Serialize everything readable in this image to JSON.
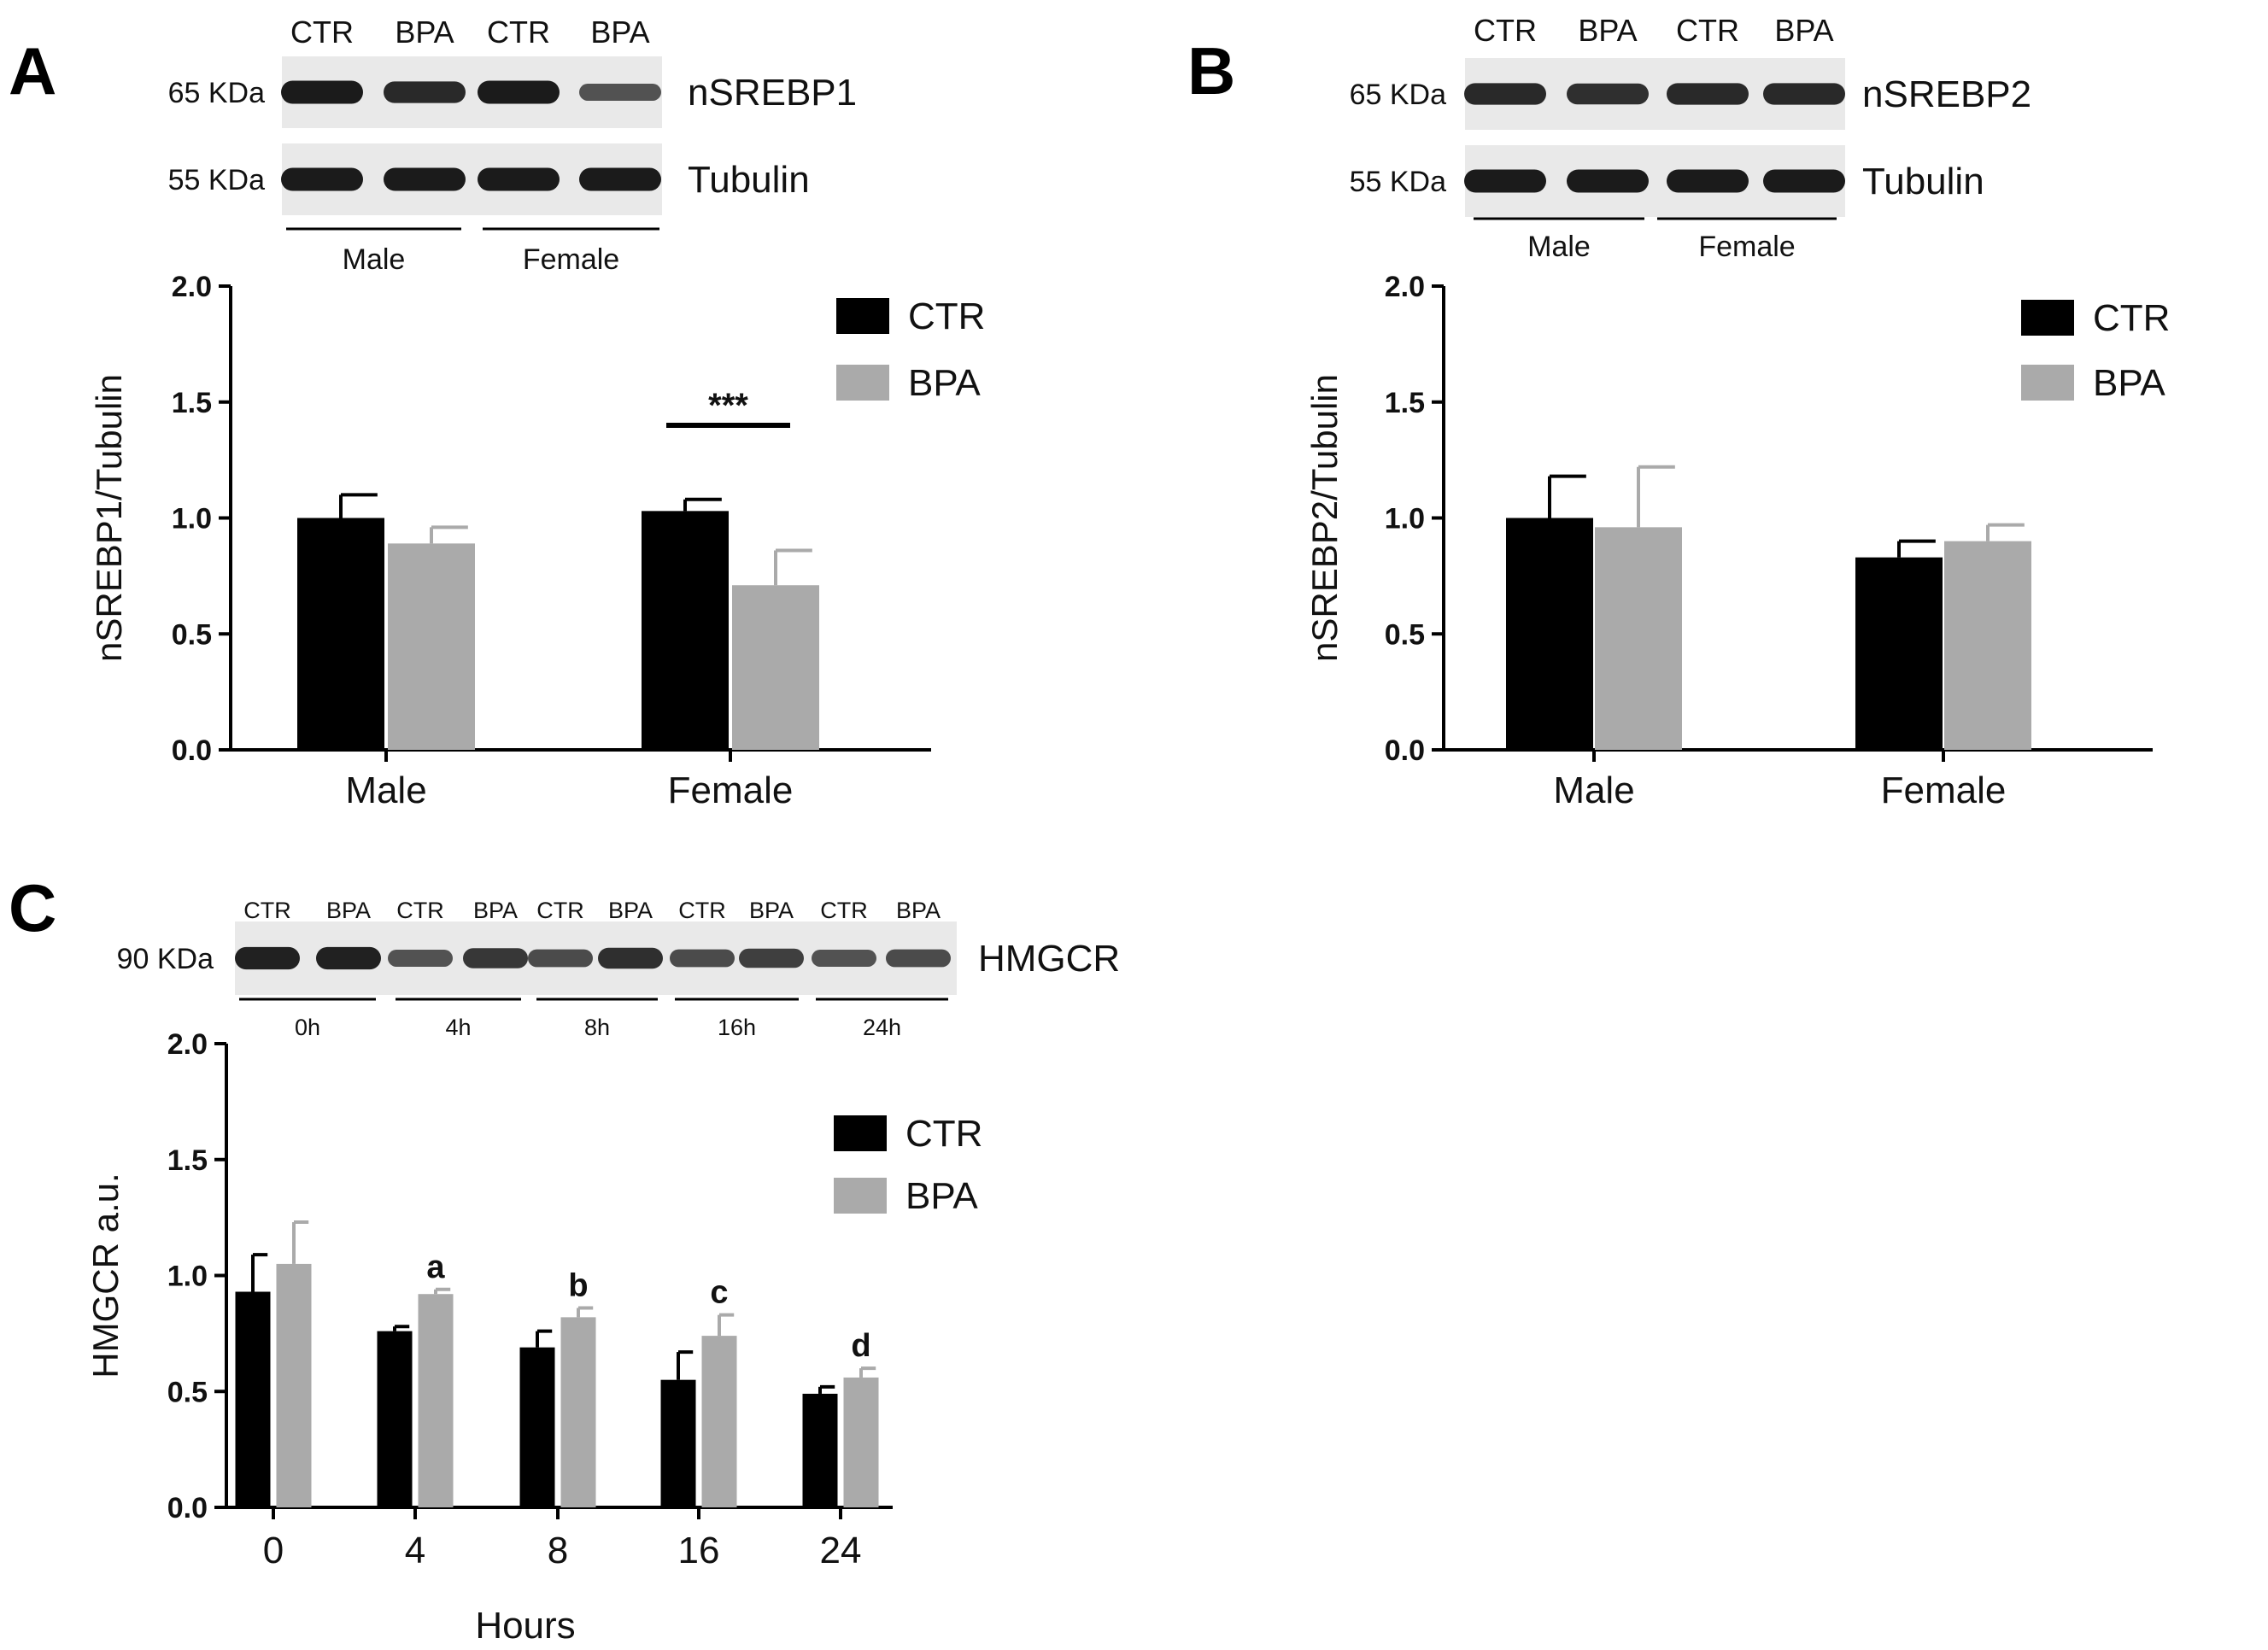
{
  "figure": {
    "panels": [
      {
        "label": "A",
        "blot": {
          "lanes": [
            "CTR",
            "BPA",
            "CTR",
            "BPA"
          ],
          "rows": [
            {
              "weight": "65 KDa",
              "protein": "nSREBP1",
              "band_intensity": [
                0.95,
                0.85,
                0.95,
                0.55
              ]
            },
            {
              "weight": "55 KDa",
              "protein": "Tubulin",
              "band_intensity": [
                0.95,
                0.95,
                0.95,
                0.95
              ]
            }
          ],
          "groups": [
            "Male",
            "Female"
          ]
        },
        "chart_data": {
          "type": "bar",
          "categories": [
            "Male",
            "Female"
          ],
          "series": [
            {
              "name": "CTR",
              "values": [
                1.0,
                1.03
              ],
              "errors": [
                0.1,
                0.05
              ]
            },
            {
              "name": "BPA",
              "values": [
                0.89,
                0.71
              ],
              "errors": [
                0.07,
                0.15
              ]
            }
          ],
          "ylabel": "nSREBP1/Tubulin",
          "ylim": [
            0,
            2.0
          ],
          "yticks": [
            "0.0",
            "0.5",
            "1.0",
            "1.5",
            "2.0"
          ],
          "legend": "top-right",
          "annotations": [
            {
              "category": "Female",
              "text": "***"
            }
          ]
        }
      },
      {
        "label": "B",
        "blot": {
          "lanes": [
            "CTR",
            "BPA",
            "CTR",
            "BPA"
          ],
          "rows": [
            {
              "weight": "65 KDa",
              "protein": "nSREBP2",
              "band_intensity": [
                0.85,
                0.8,
                0.85,
                0.85
              ]
            },
            {
              "weight": "55 KDa",
              "protein": "Tubulin",
              "band_intensity": [
                0.95,
                0.95,
                0.95,
                0.95
              ]
            }
          ],
          "groups": [
            "Male",
            "Female"
          ]
        },
        "chart_data": {
          "type": "bar",
          "categories": [
            "Male",
            "Female"
          ],
          "series": [
            {
              "name": "CTR",
              "values": [
                1.0,
                0.83
              ],
              "errors": [
                0.18,
                0.07
              ]
            },
            {
              "name": "BPA",
              "values": [
                0.96,
                0.9
              ],
              "errors": [
                0.26,
                0.07
              ]
            }
          ],
          "ylabel": "nSREBP2/Tubulin",
          "ylim": [
            0,
            2.0
          ],
          "yticks": [
            "0.0",
            "0.5",
            "1.0",
            "1.5",
            "2.0"
          ],
          "legend": "top-right",
          "annotations": []
        }
      },
      {
        "label": "C",
        "blot": {
          "lanes": [
            "CTR",
            "BPA",
            "CTR",
            "BPA",
            "CTR",
            "BPA",
            "CTR",
            "BPA",
            "CTR",
            "BPA"
          ],
          "rows": [
            {
              "weight": "90 KDa",
              "protein": "HMGCR",
              "band_intensity": [
                0.9,
                0.9,
                0.55,
                0.75,
                0.6,
                0.8,
                0.6,
                0.7,
                0.55,
                0.6
              ]
            }
          ],
          "groups": [
            "0h",
            "4h",
            "8h",
            "16h",
            "24h"
          ]
        },
        "chart_data": {
          "type": "bar",
          "categories": [
            "0",
            "4",
            "8",
            "16",
            "24"
          ],
          "series": [
            {
              "name": "CTR",
              "values": [
                0.93,
                0.76,
                0.69,
                0.55,
                0.49
              ],
              "errors": [
                0.16,
                0.02,
                0.07,
                0.12,
                0.03
              ]
            },
            {
              "name": "BPA",
              "values": [
                1.05,
                0.92,
                0.82,
                0.74,
                0.56
              ],
              "errors": [
                0.18,
                0.02,
                0.04,
                0.09,
                0.04
              ]
            }
          ],
          "xlabel": "Hours",
          "ylabel": "HMGCR a.u.",
          "ylim": [
            0,
            2.0
          ],
          "yticks": [
            "0.0",
            "0.5",
            "1.0",
            "1.5",
            "2.0"
          ],
          "legend": "top-right",
          "annotations": [
            {
              "category": "4",
              "text": "a"
            },
            {
              "category": "8",
              "text": "b"
            },
            {
              "category": "16",
              "text": "c"
            },
            {
              "category": "24",
              "text": "d"
            }
          ]
        }
      }
    ],
    "colors": {
      "ctr": "#000000",
      "bpa": "#aaaaaa",
      "axis": "#000000",
      "blot_bg": "#e9e9e9",
      "band": "#141414"
    }
  }
}
